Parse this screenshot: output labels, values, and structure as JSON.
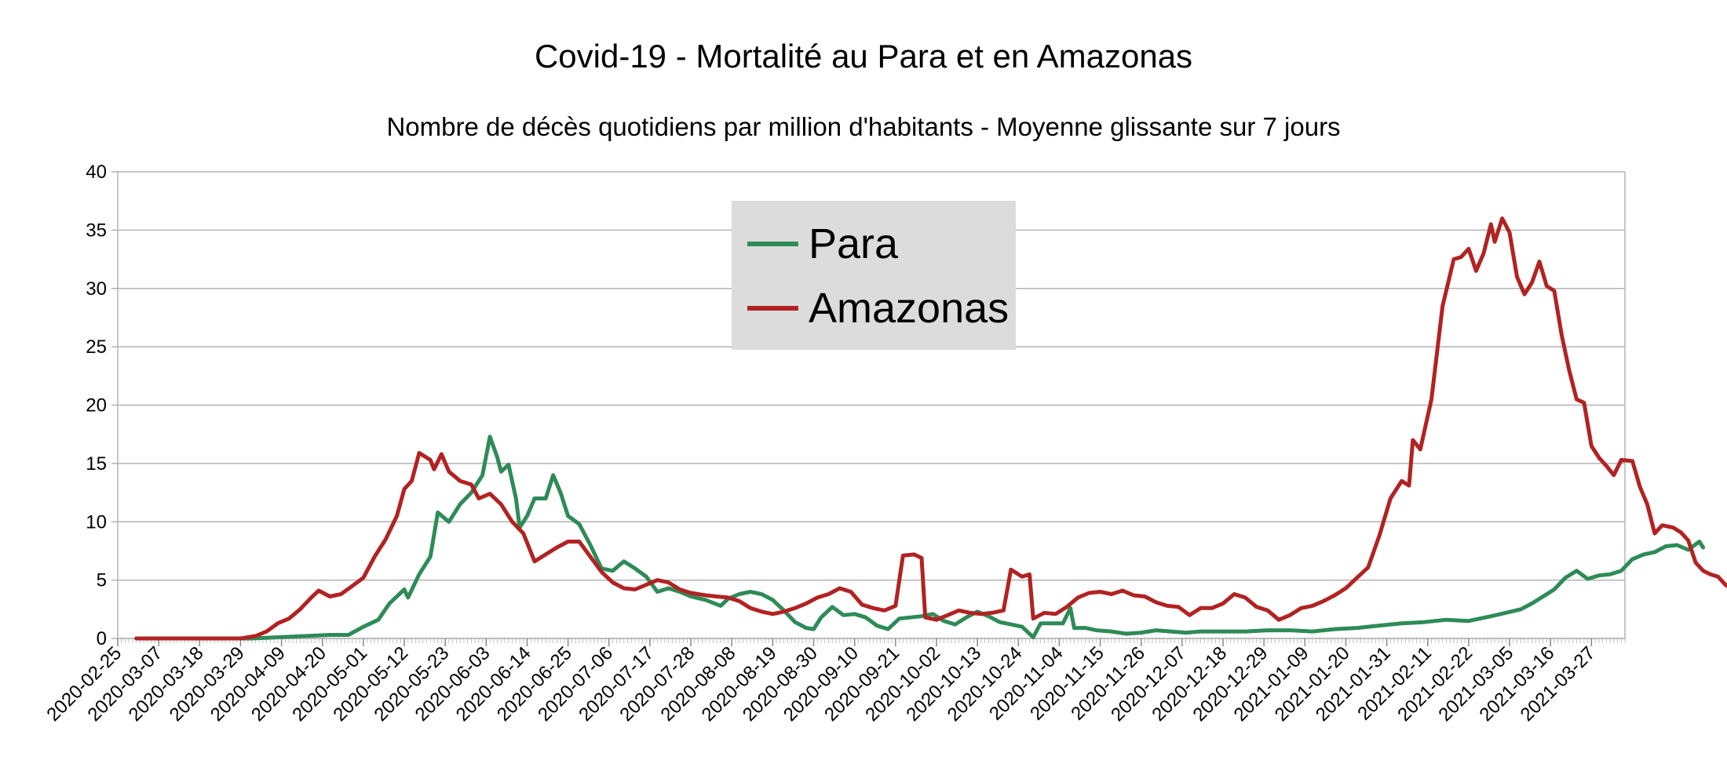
{
  "chart_data": {
    "type": "line",
    "title": "Covid-19 - Mortalité au Para et en Amazonas",
    "subtitle": "Nombre de décès quotidiens par million d'habitants - Moyenne glissante sur 7 jours",
    "xlabel": "",
    "ylabel": "",
    "ylim": [
      0,
      40
    ],
    "yticks": [
      0,
      5,
      10,
      15,
      20,
      25,
      30,
      35,
      40
    ],
    "grid": true,
    "legend_position": "top-center",
    "x_start": "2020-02-25",
    "x_end": "2021-04-05",
    "x_tick_labels": [
      "2020-02-25",
      "2020-03-07",
      "2020-03-18",
      "2020-03-29",
      "2020-04-09",
      "2020-04-20",
      "2020-05-01",
      "2020-05-12",
      "2020-05-23",
      "2020-06-03",
      "2020-06-14",
      "2020-06-25",
      "2020-07-06",
      "2020-07-17",
      "2020-07-28",
      "2020-08-08",
      "2020-08-19",
      "2020-08-30",
      "2020-09-10",
      "2020-09-21",
      "2020-10-02",
      "2020-10-13",
      "2020-10-24",
      "2020-11-04",
      "2020-11-15",
      "2020-11-26",
      "2020-12-07",
      "2020-12-18",
      "2020-12-29",
      "2021-01-09",
      "2021-01-20",
      "2021-01-31",
      "2021-02-11",
      "2021-02-22",
      "2021-03-05",
      "2021-03-16",
      "2021-03-27"
    ],
    "series": [
      {
        "name": "Para",
        "color": "#2e8b57",
        "points": [
          [
            "2020-03-01",
            0
          ],
          [
            "2020-04-01",
            0
          ],
          [
            "2020-04-08",
            0.1
          ],
          [
            "2020-04-15",
            0.2
          ],
          [
            "2020-04-22",
            0.3
          ],
          [
            "2020-04-27",
            0.3
          ],
          [
            "2020-05-01",
            1
          ],
          [
            "2020-05-05",
            1.6
          ],
          [
            "2020-05-08",
            3
          ],
          [
            "2020-05-12",
            4.2
          ],
          [
            "2020-05-13",
            3.5
          ],
          [
            "2020-05-16",
            5.5
          ],
          [
            "2020-05-19",
            7
          ],
          [
            "2020-05-21",
            10.8
          ],
          [
            "2020-05-24",
            10
          ],
          [
            "2020-05-27",
            11.5
          ],
          [
            "2020-05-30",
            12.5
          ],
          [
            "2020-06-02",
            14
          ],
          [
            "2020-06-04",
            17.3
          ],
          [
            "2020-06-06",
            15.5
          ],
          [
            "2020-06-07",
            14.3
          ],
          [
            "2020-06-09",
            14.9
          ],
          [
            "2020-06-11",
            12
          ],
          [
            "2020-06-12",
            9.5
          ],
          [
            "2020-06-14",
            10.5
          ],
          [
            "2020-06-16",
            12
          ],
          [
            "2020-06-19",
            12
          ],
          [
            "2020-06-21",
            14
          ],
          [
            "2020-06-23",
            12.5
          ],
          [
            "2020-06-25",
            10.5
          ],
          [
            "2020-06-28",
            9.8
          ],
          [
            "2020-07-01",
            8
          ],
          [
            "2020-07-04",
            6
          ],
          [
            "2020-07-07",
            5.8
          ],
          [
            "2020-07-10",
            6.6
          ],
          [
            "2020-07-13",
            6
          ],
          [
            "2020-07-16",
            5.3
          ],
          [
            "2020-07-19",
            4
          ],
          [
            "2020-07-22",
            4.3
          ],
          [
            "2020-07-25",
            4
          ],
          [
            "2020-07-28",
            3.6
          ],
          [
            "2020-08-01",
            3.3
          ],
          [
            "2020-08-05",
            2.8
          ],
          [
            "2020-08-07",
            3.4
          ],
          [
            "2020-08-10",
            3.8
          ],
          [
            "2020-08-13",
            4
          ],
          [
            "2020-08-16",
            3.8
          ],
          [
            "2020-08-19",
            3.3
          ],
          [
            "2020-08-22",
            2.4
          ],
          [
            "2020-08-25",
            1.4
          ],
          [
            "2020-08-28",
            0.9
          ],
          [
            "2020-08-30",
            0.8
          ],
          [
            "2020-09-01",
            1.8
          ],
          [
            "2020-09-04",
            2.7
          ],
          [
            "2020-09-07",
            2
          ],
          [
            "2020-09-10",
            2.1
          ],
          [
            "2020-09-13",
            1.8
          ],
          [
            "2020-09-16",
            1.1
          ],
          [
            "2020-09-19",
            0.8
          ],
          [
            "2020-09-22",
            1.7
          ],
          [
            "2020-09-25",
            1.8
          ],
          [
            "2020-09-28",
            1.9
          ],
          [
            "2020-10-01",
            2.1
          ],
          [
            "2020-10-04",
            1.5
          ],
          [
            "2020-10-07",
            1.2
          ],
          [
            "2020-10-10",
            1.8
          ],
          [
            "2020-10-13",
            2.3
          ],
          [
            "2020-10-16",
            1.9
          ],
          [
            "2020-10-19",
            1.4
          ],
          [
            "2020-10-22",
            1.2
          ],
          [
            "2020-10-25",
            1
          ],
          [
            "2020-10-28",
            0.1
          ],
          [
            "2020-10-30",
            1.3
          ],
          [
            "2020-11-02",
            1.3
          ],
          [
            "2020-11-05",
            1.3
          ],
          [
            "2020-11-07",
            2.6
          ],
          [
            "2020-11-08",
            0.9
          ],
          [
            "2020-11-11",
            0.9
          ],
          [
            "2020-11-14",
            0.7
          ],
          [
            "2020-11-18",
            0.6
          ],
          [
            "2020-11-22",
            0.4
          ],
          [
            "2020-11-26",
            0.5
          ],
          [
            "2020-11-30",
            0.7
          ],
          [
            "2020-12-04",
            0.6
          ],
          [
            "2020-12-08",
            0.5
          ],
          [
            "2020-12-12",
            0.6
          ],
          [
            "2020-12-18",
            0.6
          ],
          [
            "2020-12-24",
            0.6
          ],
          [
            "2020-12-30",
            0.7
          ],
          [
            "2021-01-05",
            0.7
          ],
          [
            "2021-01-11",
            0.6
          ],
          [
            "2021-01-17",
            0.8
          ],
          [
            "2021-01-23",
            0.9
          ],
          [
            "2021-01-29",
            1.1
          ],
          [
            "2021-02-04",
            1.3
          ],
          [
            "2021-02-10",
            1.4
          ],
          [
            "2021-02-16",
            1.6
          ],
          [
            "2021-02-22",
            1.5
          ],
          [
            "2021-02-28",
            1.9
          ],
          [
            "2021-03-04",
            2.2
          ],
          [
            "2021-03-08",
            2.5
          ],
          [
            "2021-03-11",
            3
          ],
          [
            "2021-03-14",
            3.6
          ],
          [
            "2021-03-17",
            4.2
          ],
          [
            "2021-03-20",
            5.2
          ],
          [
            "2021-03-23",
            5.8
          ],
          [
            "2021-03-26",
            5.1
          ],
          [
            "2021-03-29",
            5.4
          ],
          [
            "2021-04-01",
            5.5
          ],
          [
            "2021-04-04",
            5.8
          ],
          [
            "2021-04-07",
            6.8
          ],
          [
            "2021-04-10",
            7.2
          ],
          [
            "2021-04-13",
            7.4
          ],
          [
            "2021-04-16",
            7.9
          ],
          [
            "2021-04-19",
            8
          ],
          [
            "2021-04-22",
            7.6
          ],
          [
            "2021-04-25",
            8.3
          ],
          [
            "2021-04-26",
            7.8
          ]
        ]
      },
      {
        "name": "Amazonas",
        "color": "#b22222",
        "points": [
          [
            "2020-03-01",
            0
          ],
          [
            "2020-03-29",
            0
          ],
          [
            "2020-04-02",
            0.2
          ],
          [
            "2020-04-05",
            0.6
          ],
          [
            "2020-04-08",
            1.3
          ],
          [
            "2020-04-11",
            1.7
          ],
          [
            "2020-04-14",
            2.5
          ],
          [
            "2020-04-17",
            3.5
          ],
          [
            "2020-04-19",
            4.1
          ],
          [
            "2020-04-22",
            3.6
          ],
          [
            "2020-04-25",
            3.8
          ],
          [
            "2020-04-28",
            4.5
          ],
          [
            "2020-05-01",
            5.2
          ],
          [
            "2020-05-04",
            7
          ],
          [
            "2020-05-07",
            8.5
          ],
          [
            "2020-05-10",
            10.5
          ],
          [
            "2020-05-12",
            12.8
          ],
          [
            "2020-05-14",
            13.5
          ],
          [
            "2020-05-16",
            15.9
          ],
          [
            "2020-05-19",
            15.3
          ],
          [
            "2020-05-20",
            14.5
          ],
          [
            "2020-05-22",
            15.8
          ],
          [
            "2020-05-24",
            14.3
          ],
          [
            "2020-05-27",
            13.5
          ],
          [
            "2020-05-30",
            13.2
          ],
          [
            "2020-06-01",
            12
          ],
          [
            "2020-06-04",
            12.4
          ],
          [
            "2020-06-07",
            11.5
          ],
          [
            "2020-06-10",
            10
          ],
          [
            "2020-06-13",
            9
          ],
          [
            "2020-06-16",
            6.6
          ],
          [
            "2020-06-19",
            7.2
          ],
          [
            "2020-06-22",
            7.8
          ],
          [
            "2020-06-25",
            8.3
          ],
          [
            "2020-06-28",
            8.3
          ],
          [
            "2020-07-01",
            7
          ],
          [
            "2020-07-04",
            5.7
          ],
          [
            "2020-07-07",
            4.8
          ],
          [
            "2020-07-10",
            4.3
          ],
          [
            "2020-07-13",
            4.2
          ],
          [
            "2020-07-16",
            4.6
          ],
          [
            "2020-07-19",
            5
          ],
          [
            "2020-07-22",
            4.8
          ],
          [
            "2020-07-25",
            4.2
          ],
          [
            "2020-07-28",
            3.9
          ],
          [
            "2020-08-01",
            3.7
          ],
          [
            "2020-08-04",
            3.6
          ],
          [
            "2020-08-07",
            3.5
          ],
          [
            "2020-08-10",
            3.2
          ],
          [
            "2020-08-13",
            2.6
          ],
          [
            "2020-08-16",
            2.3
          ],
          [
            "2020-08-19",
            2.1
          ],
          [
            "2020-08-22",
            2.3
          ],
          [
            "2020-08-25",
            2.6
          ],
          [
            "2020-08-28",
            3
          ],
          [
            "2020-08-31",
            3.5
          ],
          [
            "2020-09-03",
            3.8
          ],
          [
            "2020-09-06",
            4.3
          ],
          [
            "2020-09-09",
            4
          ],
          [
            "2020-09-12",
            2.9
          ],
          [
            "2020-09-15",
            2.6
          ],
          [
            "2020-09-18",
            2.4
          ],
          [
            "2020-09-21",
            2.8
          ],
          [
            "2020-09-23",
            7.1
          ],
          [
            "2020-09-26",
            7.2
          ],
          [
            "2020-09-28",
            6.9
          ],
          [
            "2020-09-29",
            1.8
          ],
          [
            "2020-10-02",
            1.6
          ],
          [
            "2020-10-05",
            2
          ],
          [
            "2020-10-08",
            2.4
          ],
          [
            "2020-10-11",
            2.2
          ],
          [
            "2020-10-14",
            2.1
          ],
          [
            "2020-10-17",
            2.2
          ],
          [
            "2020-10-20",
            2.4
          ],
          [
            "2020-10-22",
            5.9
          ],
          [
            "2020-10-25",
            5.3
          ],
          [
            "2020-10-27",
            5.5
          ],
          [
            "2020-10-28",
            1.7
          ],
          [
            "2020-10-31",
            2.2
          ],
          [
            "2020-11-03",
            2.1
          ],
          [
            "2020-11-06",
            2.7
          ],
          [
            "2020-11-09",
            3.5
          ],
          [
            "2020-11-12",
            3.9
          ],
          [
            "2020-11-15",
            4
          ],
          [
            "2020-11-18",
            3.8
          ],
          [
            "2020-11-21",
            4.1
          ],
          [
            "2020-11-24",
            3.7
          ],
          [
            "2020-11-27",
            3.6
          ],
          [
            "2020-11-30",
            3.1
          ],
          [
            "2020-12-03",
            2.8
          ],
          [
            "2020-12-06",
            2.7
          ],
          [
            "2020-12-09",
            2
          ],
          [
            "2020-12-12",
            2.6
          ],
          [
            "2020-12-15",
            2.6
          ],
          [
            "2020-12-18",
            3
          ],
          [
            "2020-12-21",
            3.8
          ],
          [
            "2020-12-24",
            3.5
          ],
          [
            "2020-12-27",
            2.7
          ],
          [
            "2020-12-30",
            2.4
          ],
          [
            "2021-01-02",
            1.6
          ],
          [
            "2021-01-05",
            2
          ],
          [
            "2021-01-08",
            2.6
          ],
          [
            "2021-01-11",
            2.8
          ],
          [
            "2021-01-14",
            3.2
          ],
          [
            "2021-01-17",
            3.7
          ],
          [
            "2021-01-20",
            4.3
          ],
          [
            "2021-01-23",
            5.2
          ],
          [
            "2021-01-26",
            6.1
          ],
          [
            "2021-01-29",
            8.8
          ],
          [
            "2021-02-01",
            12
          ],
          [
            "2021-02-04",
            13.5
          ],
          [
            "2021-02-06",
            13.1
          ],
          [
            "2021-02-07",
            17
          ],
          [
            "2021-02-09",
            16.2
          ],
          [
            "2021-02-12",
            20.5
          ],
          [
            "2021-02-15",
            28.5
          ],
          [
            "2021-02-18",
            32.5
          ],
          [
            "2021-02-20",
            32.7
          ],
          [
            "2021-02-22",
            33.4
          ],
          [
            "2021-02-24",
            31.5
          ],
          [
            "2021-02-26",
            33
          ],
          [
            "2021-02-28",
            35.5
          ],
          [
            "2021-03-01",
            34
          ],
          [
            "2021-03-03",
            36
          ],
          [
            "2021-03-05",
            34.8
          ],
          [
            "2021-03-07",
            31
          ],
          [
            "2021-03-09",
            29.5
          ],
          [
            "2021-03-11",
            30.5
          ],
          [
            "2021-03-13",
            32.3
          ],
          [
            "2021-03-15",
            30.2
          ],
          [
            "2021-03-17",
            29.8
          ],
          [
            "2021-03-19",
            26
          ],
          [
            "2021-03-21",
            23
          ],
          [
            "2021-03-23",
            20.5
          ],
          [
            "2021-03-25",
            20.2
          ],
          [
            "2021-03-27",
            16.5
          ],
          [
            "2021-03-29",
            15.5
          ],
          [
            "2021-03-31",
            14.8
          ],
          [
            "2021-04-02",
            14
          ],
          [
            "2021-04-04",
            15.3
          ],
          [
            "2021-04-07",
            15.2
          ],
          [
            "2021-04-09",
            13
          ],
          [
            "2021-04-11",
            11.5
          ],
          [
            "2021-04-13",
            9
          ],
          [
            "2021-04-15",
            9.7
          ],
          [
            "2021-04-18",
            9.5
          ],
          [
            "2021-04-20",
            9.1
          ],
          [
            "2021-04-22",
            8.4
          ],
          [
            "2021-04-24",
            6.5
          ],
          [
            "2021-04-26",
            5.8
          ],
          [
            "2021-04-28",
            5.5
          ],
          [
            "2021-04-30",
            5.3
          ],
          [
            "2021-05-02",
            4.6
          ],
          [
            "2021-05-04",
            4.2
          ],
          [
            "2021-05-05",
            4.5
          ]
        ]
      }
    ]
  }
}
